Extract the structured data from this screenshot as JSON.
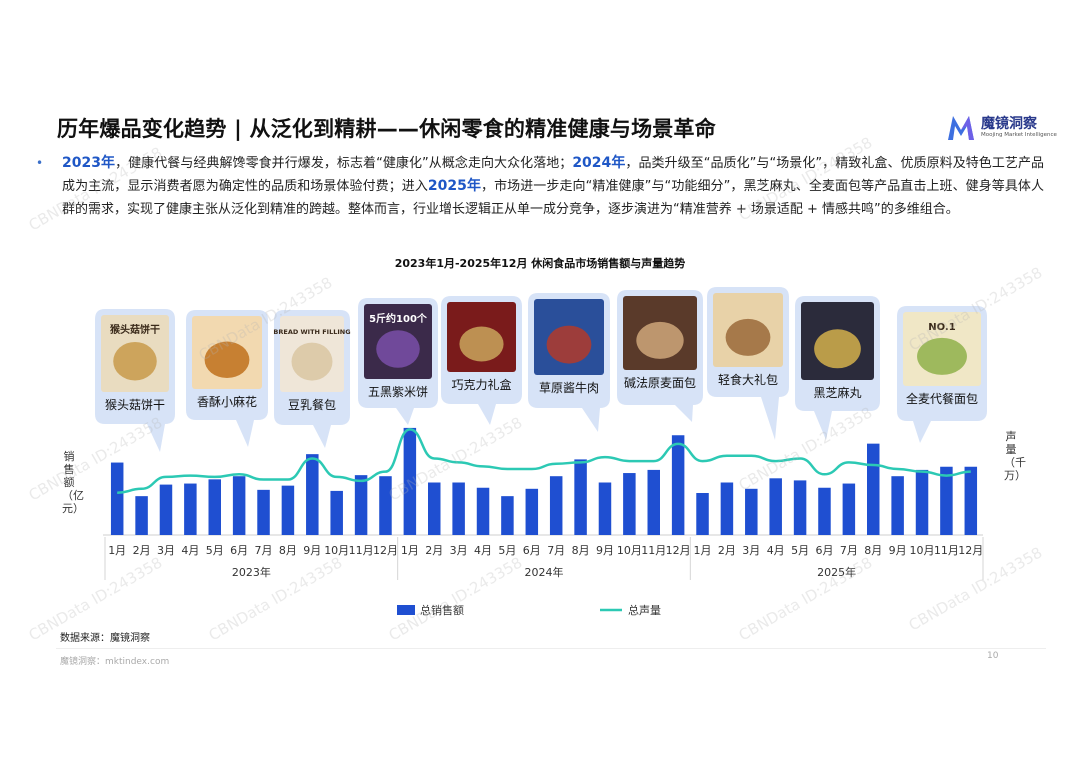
{
  "header": {
    "title": "历年爆品变化趋势 | 从泛化到精耕——休闲零食的精准健康与场景革命",
    "logo_cn": "魔镜洞察",
    "logo_en": "Moojing Market Intelligence"
  },
  "summary": {
    "bullet": "•",
    "y2023": "2023年",
    "p1": "，健康代餐与经典解馋零食并行爆发，标志着“健康化”从概念走向大众化落地；",
    "y2024": "2024年",
    "p2": "，品类升级至“品质化”与“场景化”，精致礼盒、优质原料及特色工艺产品成为主流，显示消费者愿为确定性的品质和场景体验付费；进入",
    "y2025": "2025年",
    "p3": "，市场进一步走向“精准健康”与“功能细分”，黑芝麻丸、全麦面包等产品直击上班、健身等具体人群的需求，实现了健康主张从泛化到精准的跨越。整体而言，行业增长逻辑正从单一成分竞争，逐步演进为“精准营养 + 场景适配 + 情感共鸣”的多维组合。"
  },
  "products": [
    {
      "name": "猴头菇饼干",
      "img_text": "猴头菇饼干"
    },
    {
      "name": "香酥小麻花",
      "img_text": ""
    },
    {
      "name": "豆乳餐包",
      "img_text": "BREAD WITH FILLING"
    },
    {
      "name": "五黑紫米饼",
      "img_text": "5斤约100个"
    },
    {
      "name": "巧克力礼盒",
      "img_text": ""
    },
    {
      "name": "草原酱牛肉",
      "img_text": ""
    },
    {
      "name": "碱法原麦面包",
      "img_text": ""
    },
    {
      "name": "轻食大礼包",
      "img_text": ""
    },
    {
      "name": "黑芝麻丸",
      "img_text": ""
    },
    {
      "name": "全麦代餐面包",
      "img_text": "NO.1"
    }
  ],
  "chart_data": {
    "type": "bar",
    "title": "2023年1月-2025年12月 休闲食品市场销售额与声量趋势",
    "categories": [
      "1月",
      "2月",
      "3月",
      "4月",
      "5月",
      "6月",
      "7月",
      "8月",
      "9月",
      "10月",
      "11月",
      "12月",
      "1月",
      "2月",
      "3月",
      "4月",
      "5月",
      "6月",
      "7月",
      "8月",
      "9月",
      "10月",
      "11月",
      "12月",
      "1月",
      "2月",
      "3月",
      "4月",
      "5月",
      "6月",
      "7月",
      "8月",
      "9月",
      "10月",
      "11月",
      "12月"
    ],
    "groups": [
      "2023年",
      "2024年",
      "2025年"
    ],
    "ylabel": "销售额（亿元）",
    "y2label": "声量（千万）",
    "grid": false,
    "legend_position": "bottom",
    "series": [
      {
        "name": "总销售额",
        "type": "bar",
        "color": "#1f4fd1",
        "values": [
          69,
          37,
          48,
          49,
          53,
          56,
          43,
          47,
          77,
          42,
          57,
          56,
          102,
          50,
          50,
          45,
          37,
          44,
          56,
          72,
          50,
          59,
          62,
          95,
          40,
          50,
          44,
          54,
          52,
          45,
          49,
          87,
          56,
          62,
          65,
          65
        ]
      },
      {
        "name": "总声量",
        "type": "line",
        "color": "#2cc9b4",
        "values": [
          32,
          35,
          44,
          45,
          44,
          46,
          42,
          42,
          58,
          44,
          41,
          48,
          80,
          58,
          55,
          52,
          50,
          50,
          54,
          55,
          59,
          56,
          56,
          69,
          56,
          60,
          60,
          56,
          58,
          46,
          55,
          53,
          50,
          48,
          45,
          48
        ]
      }
    ]
  },
  "footer": {
    "source": "数据来源：魔镜洞察",
    "site": "魔镜洞察：mktindex.com",
    "page": "10",
    "watermark": "CBNData ID:243358"
  }
}
